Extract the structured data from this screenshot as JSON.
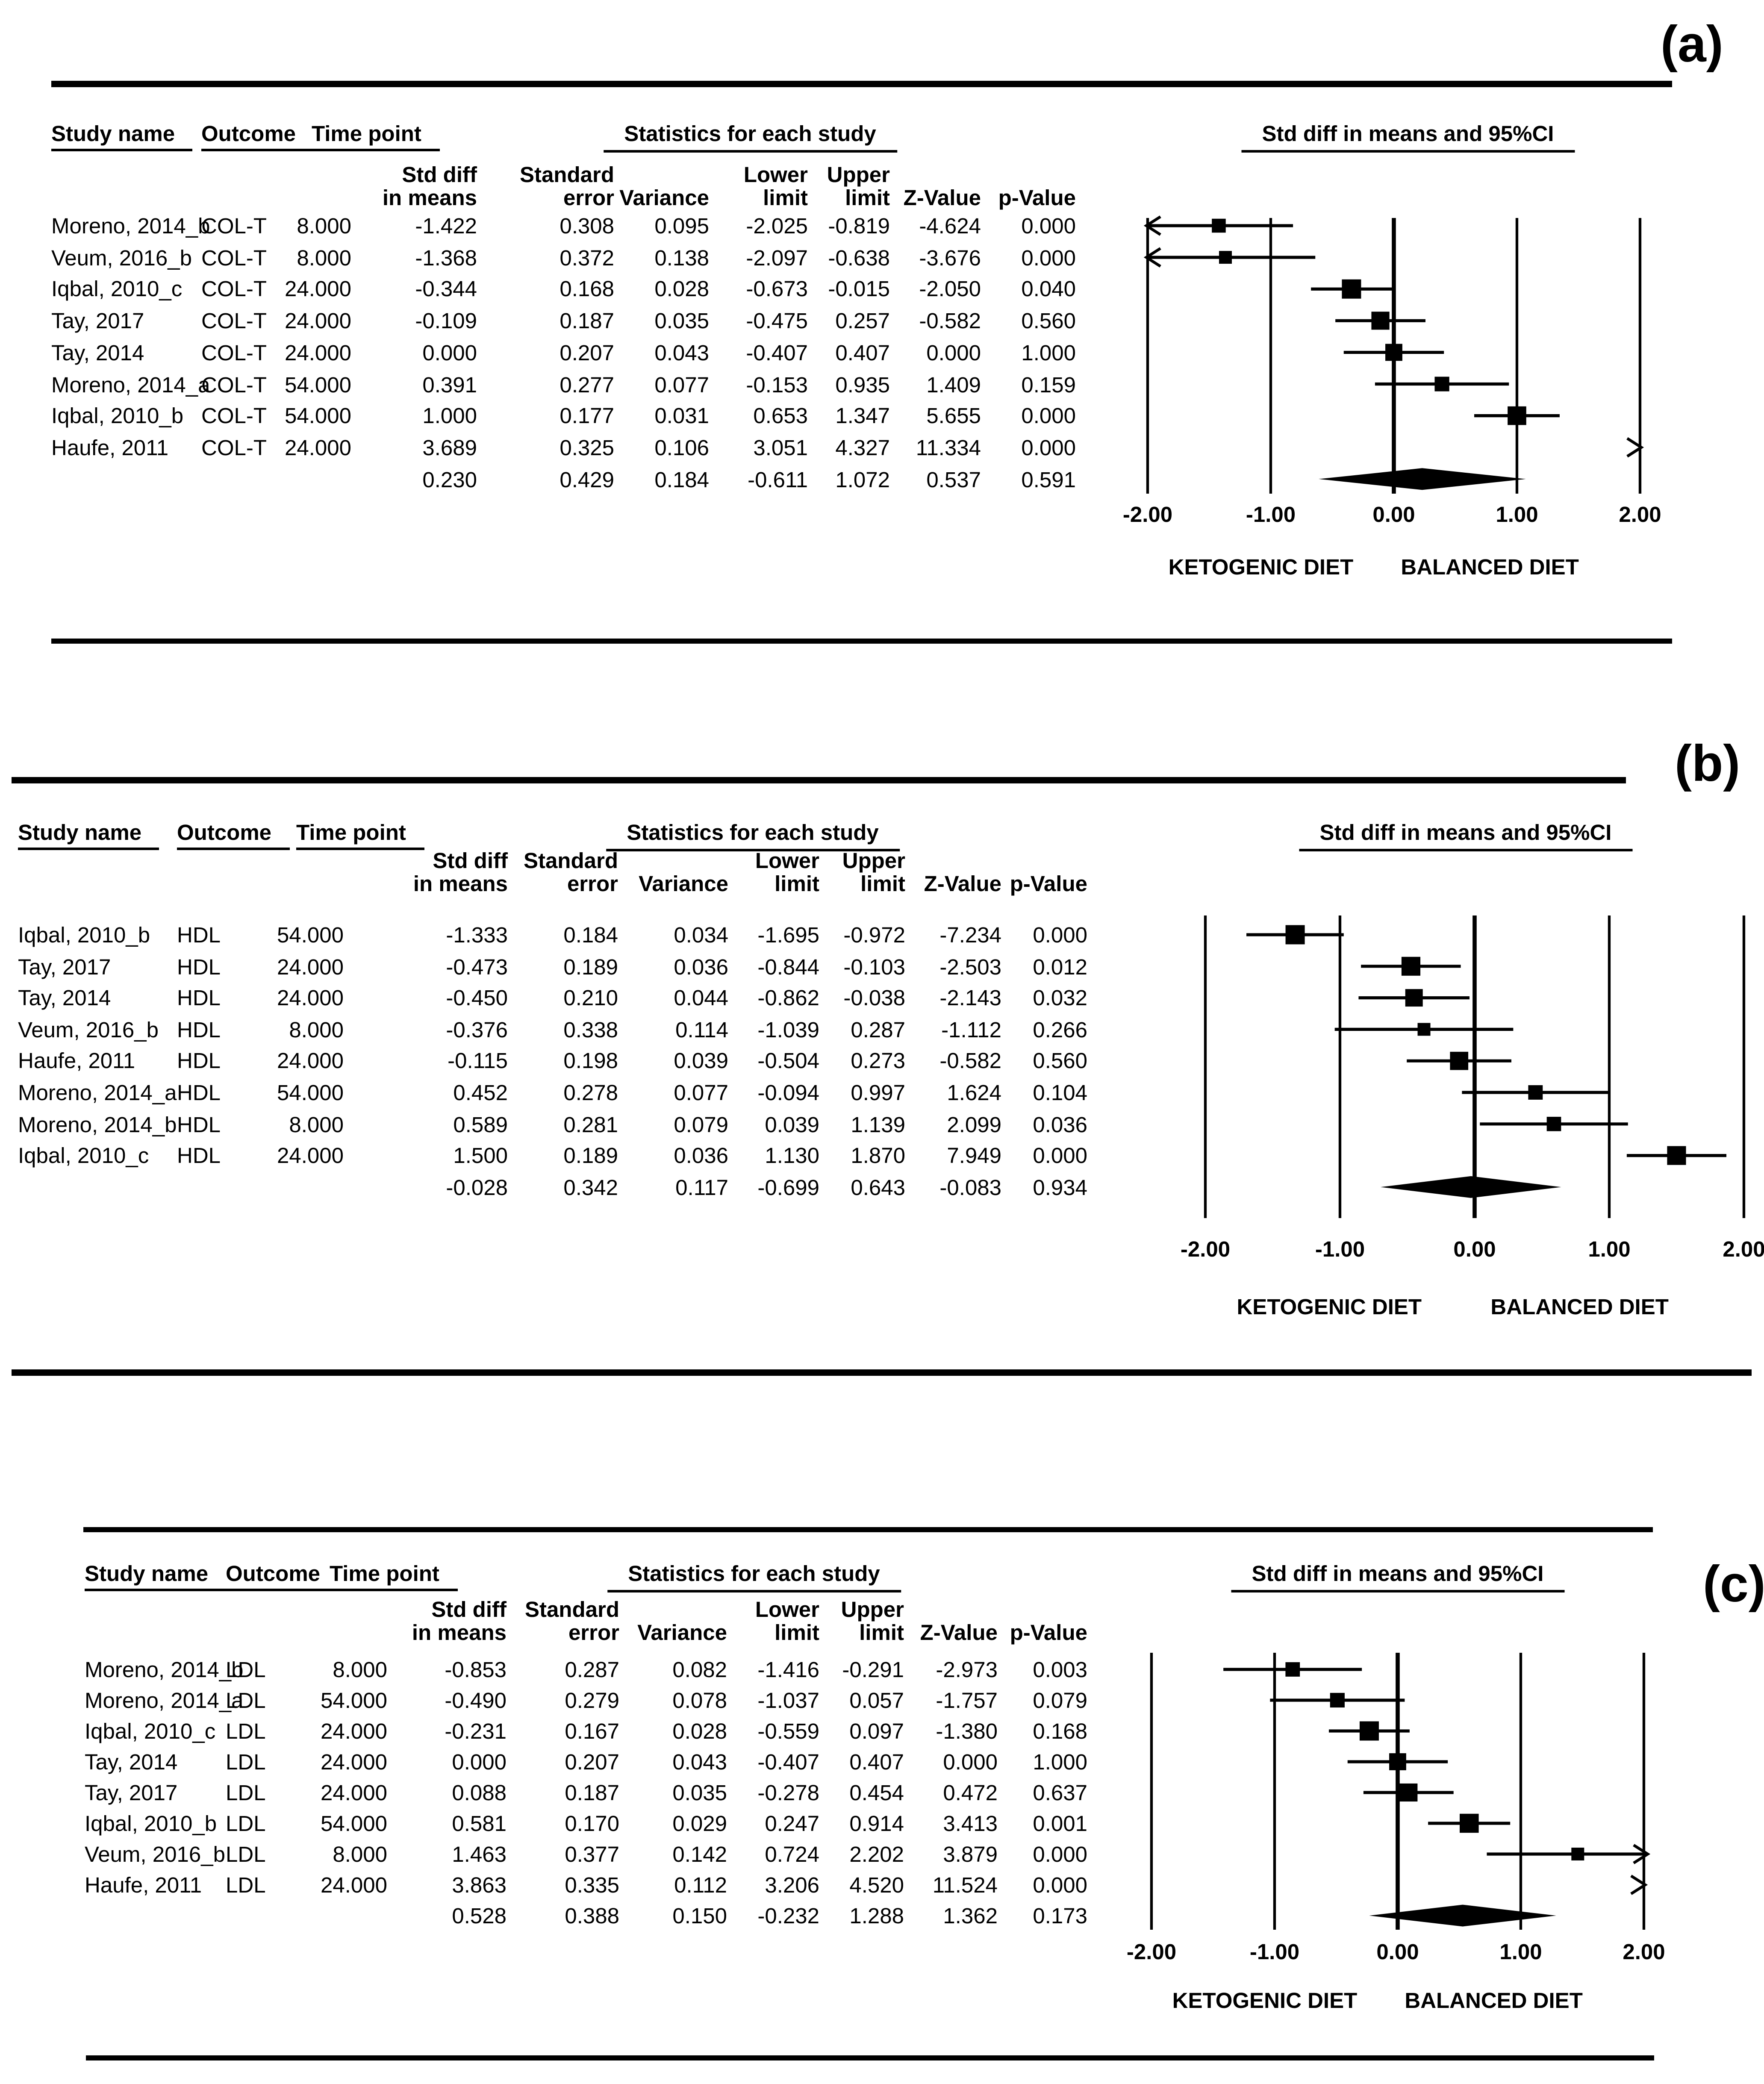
{
  "chart_data": [
    {
      "type": "forest_plot",
      "panel_label": "(a)",
      "outcome": "COL-T",
      "columns": {
        "study": "Study name",
        "outcome": "Outcome",
        "time": "Time point",
        "stats_group": "Statistics for each study",
        "plot": "Std diff in means and 95%CI"
      },
      "stat_columns": [
        [
          "Std diff",
          "in means"
        ],
        [
          "Standard",
          "error"
        ],
        [
          "",
          "Variance"
        ],
        [
          "Lower",
          "limit"
        ],
        [
          "Upper",
          "limit"
        ],
        [
          "",
          "Z-Value"
        ],
        [
          "",
          "p-Value"
        ]
      ],
      "rows": [
        {
          "study": "Moreno, 2014_b",
          "outcome": "COL-T",
          "time": "8.000",
          "std_diff": "-1.422",
          "se": "0.308",
          "variance": "0.095",
          "lower": "-2.025",
          "upper": "-0.819",
          "z": "-4.624",
          "p": "0.000"
        },
        {
          "study": "Veum, 2016_b",
          "outcome": "COL-T",
          "time": "8.000",
          "std_diff": "-1.368",
          "se": "0.372",
          "variance": "0.138",
          "lower": "-2.097",
          "upper": "-0.638",
          "z": "-3.676",
          "p": "0.000"
        },
        {
          "study": "Iqbal, 2010_c",
          "outcome": "COL-T",
          "time": "24.000",
          "std_diff": "-0.344",
          "se": "0.168",
          "variance": "0.028",
          "lower": "-0.673",
          "upper": "-0.015",
          "z": "-2.050",
          "p": "0.040"
        },
        {
          "study": "Tay, 2017",
          "outcome": "COL-T",
          "time": "24.000",
          "std_diff": "-0.109",
          "se": "0.187",
          "variance": "0.035",
          "lower": "-0.475",
          "upper": "0.257",
          "z": "-0.582",
          "p": "0.560"
        },
        {
          "study": "Tay, 2014",
          "outcome": "COL-T",
          "time": "24.000",
          "std_diff": "0.000",
          "se": "0.207",
          "variance": "0.043",
          "lower": "-0.407",
          "upper": "0.407",
          "z": "0.000",
          "p": "1.000"
        },
        {
          "study": "Moreno, 2014_a",
          "outcome": "COL-T",
          "time": "54.000",
          "std_diff": "0.391",
          "se": "0.277",
          "variance": "0.077",
          "lower": "-0.153",
          "upper": "0.935",
          "z": "1.409",
          "p": "0.159"
        },
        {
          "study": "Iqbal, 2010_b",
          "outcome": "COL-T",
          "time": "54.000",
          "std_diff": "1.000",
          "se": "0.177",
          "variance": "0.031",
          "lower": "0.653",
          "upper": "1.347",
          "z": "5.655",
          "p": "0.000"
        },
        {
          "study": "Haufe, 2011",
          "outcome": "COL-T",
          "time": "24.000",
          "std_diff": "3.689",
          "se": "0.325",
          "variance": "0.106",
          "lower": "3.051",
          "upper": "4.327",
          "z": "11.334",
          "p": "0.000"
        }
      ],
      "overall": {
        "std_diff": "0.230",
        "se": "0.429",
        "variance": "0.184",
        "lower": "-0.611",
        "upper": "1.072",
        "z": "0.537",
        "p": "0.591"
      },
      "axis": {
        "min": -2,
        "max": 2,
        "tick_values": [
          -2,
          -1,
          0,
          1,
          2
        ],
        "tick_labels": [
          "-2.00",
          "-1.00",
          "0.00",
          "1.00",
          "2.00"
        ]
      },
      "x_axis_footer": {
        "left": "KETOGENIC DIET",
        "right": "BALANCED DIET"
      }
    },
    {
      "type": "forest_plot",
      "panel_label": "(b)",
      "outcome": "HDL",
      "columns": {
        "study": "Study name",
        "outcome": "Outcome",
        "time": "Time point",
        "stats_group": "Statistics for each study",
        "plot": "Std diff in means and 95%CI"
      },
      "stat_columns": [
        [
          "Std diff",
          "in means"
        ],
        [
          "Standard",
          "error"
        ],
        [
          "",
          "Variance"
        ],
        [
          "Lower",
          "limit"
        ],
        [
          "Upper",
          "limit"
        ],
        [
          "",
          "Z-Value"
        ],
        [
          "",
          "p-Value"
        ]
      ],
      "rows": [
        {
          "study": "Iqbal, 2010_b",
          "outcome": "HDL",
          "time": "54.000",
          "std_diff": "-1.333",
          "se": "0.184",
          "variance": "0.034",
          "lower": "-1.695",
          "upper": "-0.972",
          "z": "-7.234",
          "p": "0.000"
        },
        {
          "study": "Tay, 2017",
          "outcome": "HDL",
          "time": "24.000",
          "std_diff": "-0.473",
          "se": "0.189",
          "variance": "0.036",
          "lower": "-0.844",
          "upper": "-0.103",
          "z": "-2.503",
          "p": "0.012"
        },
        {
          "study": "Tay, 2014",
          "outcome": "HDL",
          "time": "24.000",
          "std_diff": "-0.450",
          "se": "0.210",
          "variance": "0.044",
          "lower": "-0.862",
          "upper": "-0.038",
          "z": "-2.143",
          "p": "0.032"
        },
        {
          "study": "Veum, 2016_b",
          "outcome": "HDL",
          "time": "8.000",
          "std_diff": "-0.376",
          "se": "0.338",
          "variance": "0.114",
          "lower": "-1.039",
          "upper": "0.287",
          "z": "-1.112",
          "p": "0.266"
        },
        {
          "study": "Haufe, 2011",
          "outcome": "HDL",
          "time": "24.000",
          "std_diff": "-0.115",
          "se": "0.198",
          "variance": "0.039",
          "lower": "-0.504",
          "upper": "0.273",
          "z": "-0.582",
          "p": "0.560"
        },
        {
          "study": "Moreno, 2014_a",
          "outcome": "HDL",
          "time": "54.000",
          "std_diff": "0.452",
          "se": "0.278",
          "variance": "0.077",
          "lower": "-0.094",
          "upper": "0.997",
          "z": "1.624",
          "p": "0.104"
        },
        {
          "study": "Moreno, 2014_b",
          "outcome": "HDL",
          "time": "8.000",
          "std_diff": "0.589",
          "se": "0.281",
          "variance": "0.079",
          "lower": "0.039",
          "upper": "1.139",
          "z": "2.099",
          "p": "0.036"
        },
        {
          "study": "Iqbal, 2010_c",
          "outcome": "HDL",
          "time": "24.000",
          "std_diff": "1.500",
          "se": "0.189",
          "variance": "0.036",
          "lower": "1.130",
          "upper": "1.870",
          "z": "7.949",
          "p": "0.000"
        }
      ],
      "overall": {
        "std_diff": "-0.028",
        "se": "0.342",
        "variance": "0.117",
        "lower": "-0.699",
        "upper": "0.643",
        "z": "-0.083",
        "p": "0.934"
      },
      "axis": {
        "min": -2,
        "max": 2,
        "tick_values": [
          -2,
          -1,
          0,
          1,
          2
        ],
        "tick_labels": [
          "-2.00",
          "-1.00",
          "0.00",
          "1.00",
          "2.00"
        ]
      },
      "x_axis_footer": {
        "left": "KETOGENIC DIET",
        "right": "BALANCED DIET"
      }
    },
    {
      "type": "forest_plot",
      "panel_label": "(c)",
      "outcome": "LDL",
      "columns": {
        "study": "Study name",
        "outcome": "Outcome",
        "time": "Time point",
        "stats_group": "Statistics for each study",
        "plot": "Std diff in means and 95%CI"
      },
      "stat_columns": [
        [
          "Std diff",
          "in means"
        ],
        [
          "Standard",
          "error"
        ],
        [
          "",
          "Variance"
        ],
        [
          "Lower",
          "limit"
        ],
        [
          "Upper",
          "limit"
        ],
        [
          "",
          "Z-Value"
        ],
        [
          "",
          "p-Value"
        ]
      ],
      "rows": [
        {
          "study": "Moreno, 2014_b",
          "outcome": "LDL",
          "time": "8.000",
          "std_diff": "-0.853",
          "se": "0.287",
          "variance": "0.082",
          "lower": "-1.416",
          "upper": "-0.291",
          "z": "-2.973",
          "p": "0.003"
        },
        {
          "study": "Moreno, 2014_a",
          "outcome": "LDL",
          "time": "54.000",
          "std_diff": "-0.490",
          "se": "0.279",
          "variance": "0.078",
          "lower": "-1.037",
          "upper": "0.057",
          "z": "-1.757",
          "p": "0.079"
        },
        {
          "study": "Iqbal, 2010_c",
          "outcome": "LDL",
          "time": "24.000",
          "std_diff": "-0.231",
          "se": "0.167",
          "variance": "0.028",
          "lower": "-0.559",
          "upper": "0.097",
          "z": "-1.380",
          "p": "0.168"
        },
        {
          "study": "Tay, 2014",
          "outcome": "LDL",
          "time": "24.000",
          "std_diff": "0.000",
          "se": "0.207",
          "variance": "0.043",
          "lower": "-0.407",
          "upper": "0.407",
          "z": "0.000",
          "p": "1.000"
        },
        {
          "study": "Tay, 2017",
          "outcome": "LDL",
          "time": "24.000",
          "std_diff": "0.088",
          "se": "0.187",
          "variance": "0.035",
          "lower": "-0.278",
          "upper": "0.454",
          "z": "0.472",
          "p": "0.637"
        },
        {
          "study": "Iqbal, 2010_b",
          "outcome": "LDL",
          "time": "54.000",
          "std_diff": "0.581",
          "se": "0.170",
          "variance": "0.029",
          "lower": "0.247",
          "upper": "0.914",
          "z": "3.413",
          "p": "0.001"
        },
        {
          "study": "Veum, 2016_b",
          "outcome": "LDL",
          "time": "8.000",
          "std_diff": "1.463",
          "se": "0.377",
          "variance": "0.142",
          "lower": "0.724",
          "upper": "2.202",
          "z": "3.879",
          "p": "0.000"
        },
        {
          "study": "Haufe, 2011",
          "outcome": "LDL",
          "time": "24.000",
          "std_diff": "3.863",
          "se": "0.335",
          "variance": "0.112",
          "lower": "3.206",
          "upper": "4.520",
          "z": "11.524",
          "p": "0.000"
        }
      ],
      "overall": {
        "std_diff": "0.528",
        "se": "0.388",
        "variance": "0.150",
        "lower": "-0.232",
        "upper": "1.288",
        "z": "1.362",
        "p": "0.173"
      },
      "axis": {
        "min": -2,
        "max": 2,
        "tick_values": [
          -2,
          -1,
          0,
          1,
          2
        ],
        "tick_labels": [
          "-2.00",
          "-1.00",
          "0.00",
          "1.00",
          "2.00"
        ]
      },
      "x_axis_footer": {
        "left": "KETOGENIC DIET",
        "right": "BALANCED DIET"
      }
    }
  ]
}
